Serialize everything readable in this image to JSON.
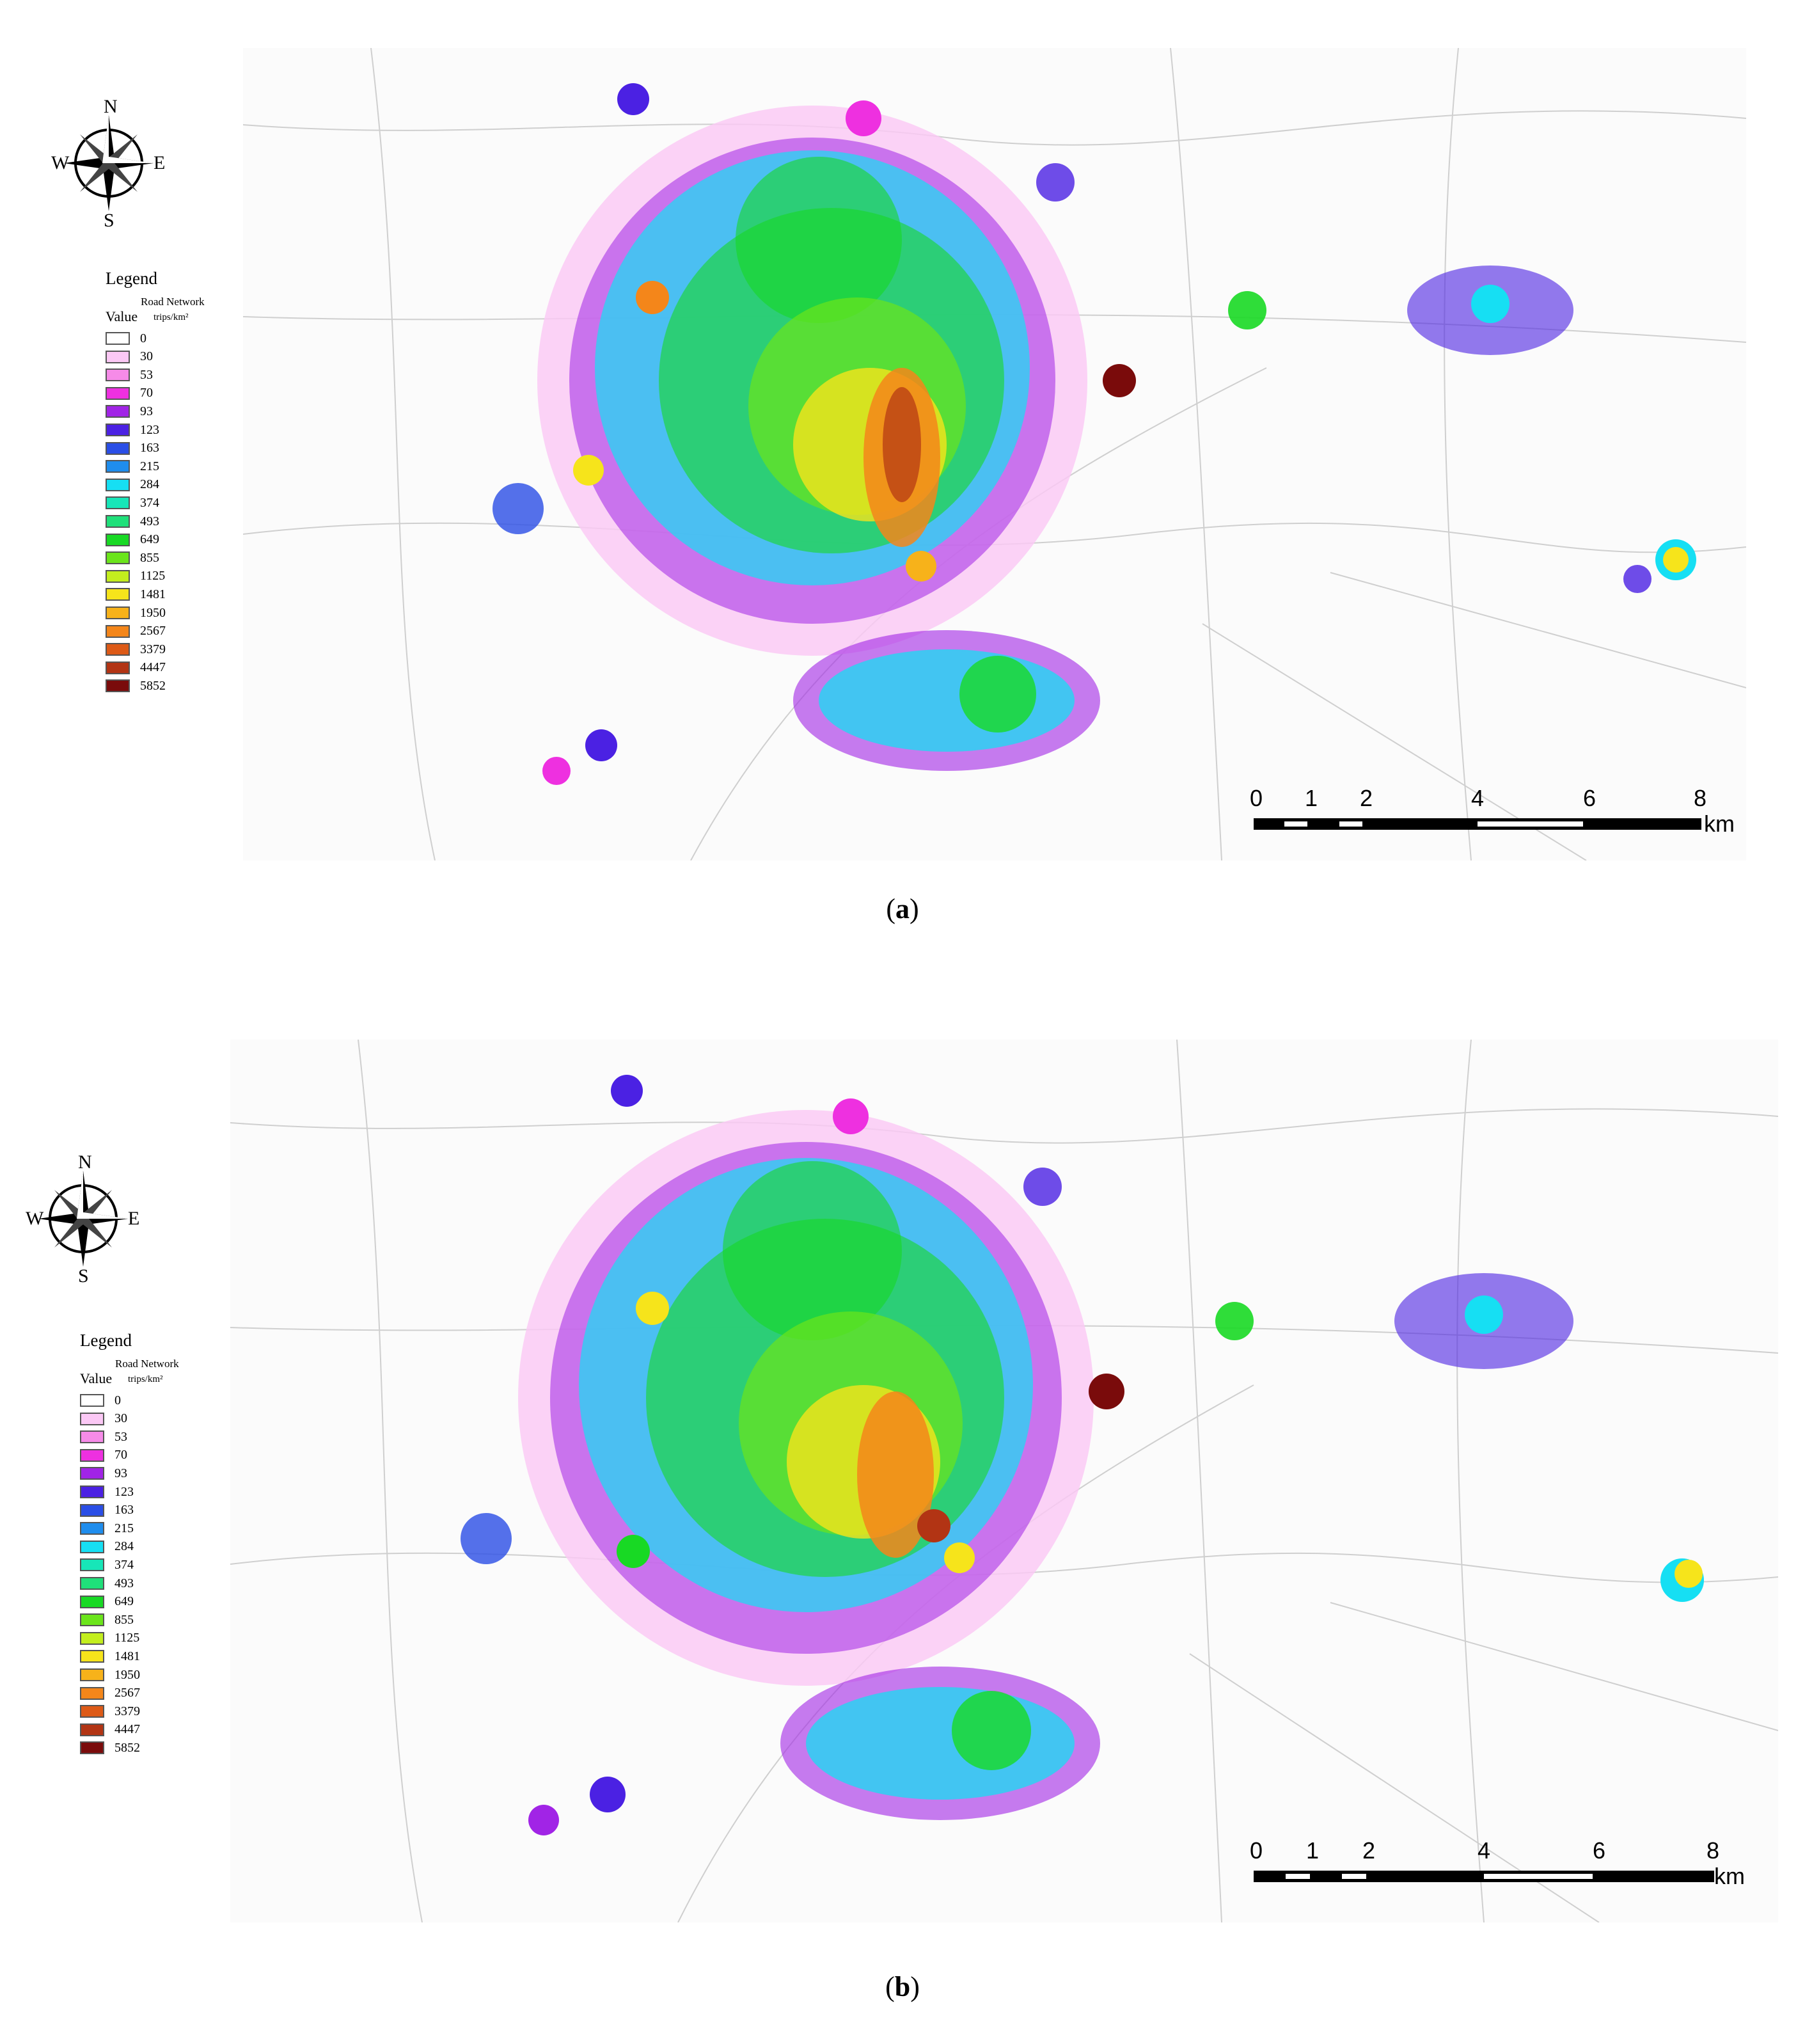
{
  "panels": [
    {
      "id": "a",
      "caption": {
        "open": "(",
        "letter": "a",
        "close": ")"
      },
      "legend": {
        "title": "Legend",
        "road_label": "Road Network",
        "value_header": "Value",
        "unit": "trips/km²",
        "classes": [
          {
            "label": "0",
            "color": "#ffffff"
          },
          {
            "label": "30",
            "color": "#fbc8f5"
          },
          {
            "label": "53",
            "color": "#f68be8"
          },
          {
            "label": "70",
            "color": "#ee30e0"
          },
          {
            "label": "93",
            "color": "#a124e6"
          },
          {
            "label": "123",
            "color": "#4b21e3"
          },
          {
            "label": "163",
            "color": "#2a4ee6"
          },
          {
            "label": "215",
            "color": "#1f8ded"
          },
          {
            "label": "284",
            "color": "#16dff3"
          },
          {
            "label": "374",
            "color": "#17e6b8"
          },
          {
            "label": "493",
            "color": "#1fe07a"
          },
          {
            "label": "649",
            "color": "#18d924"
          },
          {
            "label": "855",
            "color": "#6be51b"
          },
          {
            "label": "1125",
            "color": "#c3ee1e"
          },
          {
            "label": "1481",
            "color": "#f6e41b"
          },
          {
            "label": "1950",
            "color": "#f7b21a"
          },
          {
            "label": "2567",
            "color": "#f4861a"
          },
          {
            "label": "3379",
            "color": "#dd5a17"
          },
          {
            "label": "4447",
            "color": "#b23414"
          },
          {
            "label": "5852",
            "color": "#7a0b0b"
          }
        ]
      },
      "compass": {
        "n": "N",
        "s": "S",
        "e": "E",
        "w": "W"
      },
      "scalebar": {
        "ticks": [
          "0",
          "1",
          "2",
          "4",
          "6",
          "8"
        ],
        "unit": "km"
      }
    },
    {
      "id": "b",
      "caption": {
        "open": "(",
        "letter": "b",
        "close": ")"
      },
      "legend": {
        "title": "Legend",
        "road_label": "Road Network",
        "value_header": "Value",
        "unit": "trips/km²",
        "classes": [
          {
            "label": "0",
            "color": "#ffffff"
          },
          {
            "label": "30",
            "color": "#fbc8f5"
          },
          {
            "label": "53",
            "color": "#f68be8"
          },
          {
            "label": "70",
            "color": "#ee30e0"
          },
          {
            "label": "93",
            "color": "#a124e6"
          },
          {
            "label": "123",
            "color": "#4b21e3"
          },
          {
            "label": "163",
            "color": "#2a4ee6"
          },
          {
            "label": "215",
            "color": "#1f8ded"
          },
          {
            "label": "284",
            "color": "#16dff3"
          },
          {
            "label": "374",
            "color": "#17e6b8"
          },
          {
            "label": "493",
            "color": "#1fe07a"
          },
          {
            "label": "649",
            "color": "#18d924"
          },
          {
            "label": "855",
            "color": "#6be51b"
          },
          {
            "label": "1125",
            "color": "#c3ee1e"
          },
          {
            "label": "1481",
            "color": "#f6e41b"
          },
          {
            "label": "1950",
            "color": "#f7b21a"
          },
          {
            "label": "2567",
            "color": "#f4861a"
          },
          {
            "label": "3379",
            "color": "#dd5a17"
          },
          {
            "label": "4447",
            "color": "#b23414"
          },
          {
            "label": "5852",
            "color": "#7a0b0b"
          }
        ]
      },
      "compass": {
        "n": "N",
        "s": "S",
        "e": "E",
        "w": "W"
      },
      "scalebar": {
        "ticks": [
          "0",
          "1",
          "2",
          "4",
          "6",
          "8"
        ],
        "unit": "km"
      }
    }
  ]
}
